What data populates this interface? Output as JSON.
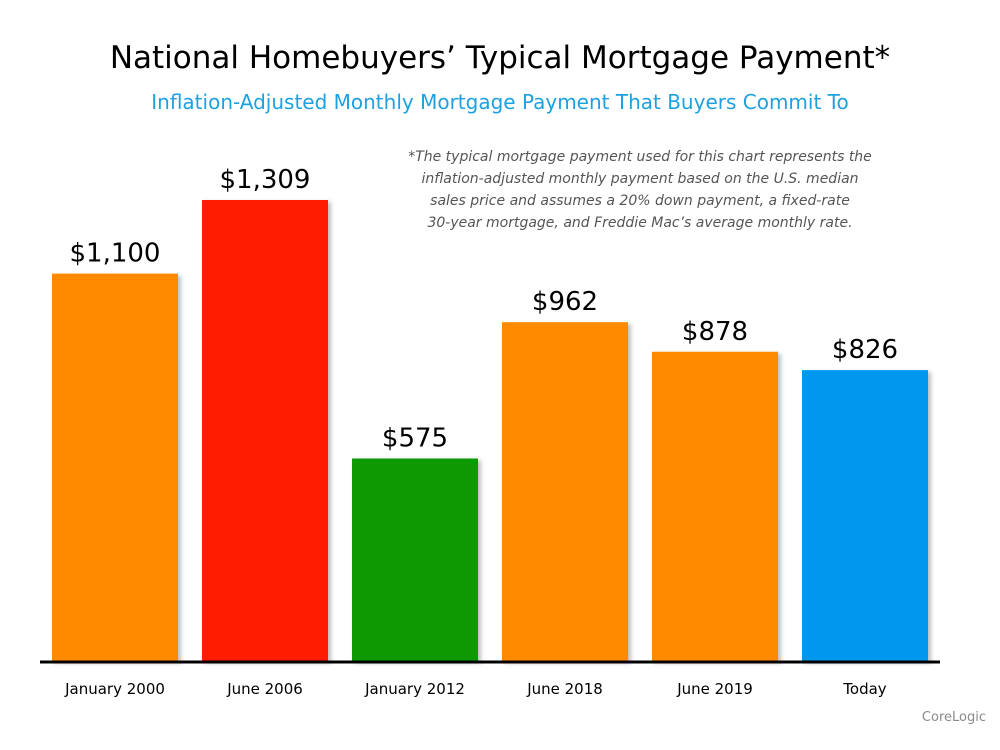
{
  "title": "National Homebuyers’ Typical Mortgage Payment*",
  "subtitle": "Inflation-Adjusted Monthly Mortgage Payment That Buyers Commit To",
  "footnote": [
    "*The typical mortgage payment used for this chart represents the",
    "inflation-adjusted monthly payment based on the U.S. median",
    "sales price and assumes a 20% down payment, a fixed-rate",
    "30-year mortgage, and Freddie Mac’s average monthly rate."
  ],
  "source": "CoreLogic",
  "chart_data": {
    "type": "bar",
    "categories": [
      "January 2000",
      "June 2006",
      "January 2012",
      "June 2018",
      "June 2019",
      "Today"
    ],
    "values": [
      1100,
      1309,
      575,
      962,
      878,
      826
    ],
    "value_labels": [
      "$1,100",
      "$1,309",
      "$575",
      "$962",
      "$878",
      "$826"
    ],
    "bar_colors": [
      "#ff8a00",
      "#ff1e00",
      "#0a9a00",
      "#ff8a00",
      "#ff8a00",
      "#0098ee"
    ],
    "ylim": [
      0,
      1309
    ],
    "grid": false,
    "xlabel": "",
    "ylabel": ""
  }
}
